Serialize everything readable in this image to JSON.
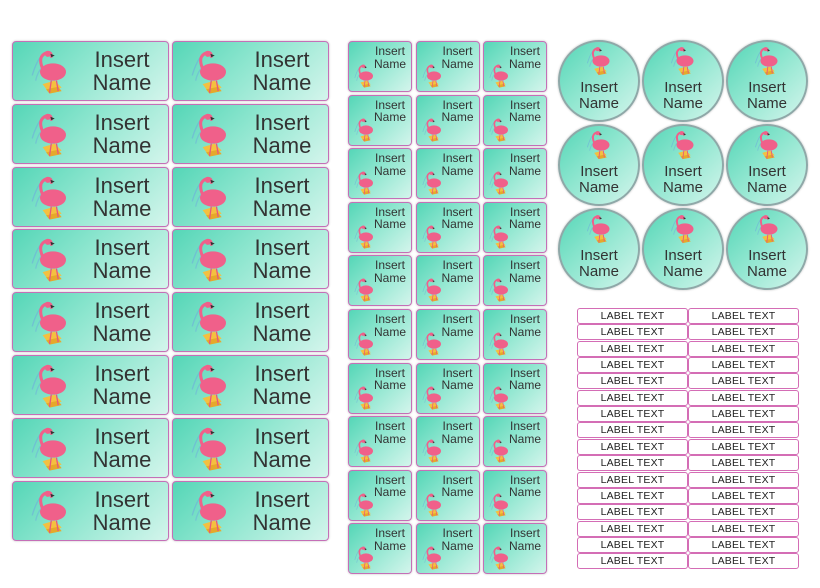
{
  "labels": {
    "line1": "Insert",
    "line2": "Name",
    "text_label": "LABEL TEXT"
  },
  "colors": {
    "label_gradient_start": "#55d6b7",
    "label_gradient_end": "#d4f5ec",
    "label_border": "#c56fb7",
    "flamingo": "#f0608a",
    "text_label_border": "#d46db5"
  },
  "sheet_sections": {
    "large": {
      "columns": 2,
      "rows": 8
    },
    "small": {
      "columns": 3,
      "rows": 10
    },
    "round": {
      "columns": 3,
      "rows": 3
    },
    "text": {
      "columns": 2,
      "rows": 16
    }
  },
  "icons": [
    "flamingo-icon"
  ]
}
